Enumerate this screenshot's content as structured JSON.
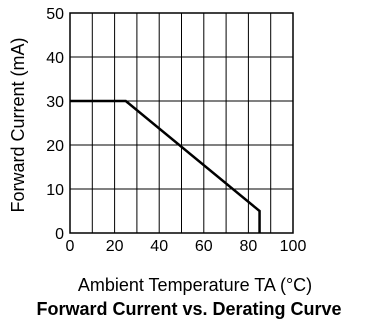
{
  "chart_data": {
    "type": "line",
    "title": "Forward Current vs. Derating Curve",
    "xlabel": "Ambient Temperature  TA (°C)",
    "ylabel": "Forward Current (mA)",
    "xlim": [
      0,
      100
    ],
    "ylim": [
      0,
      50
    ],
    "xticks": [
      0,
      20,
      40,
      60,
      80,
      100
    ],
    "yticks": [
      0,
      10,
      20,
      30,
      40,
      50
    ],
    "grid_x_step": 10,
    "grid_y_step": 10,
    "grid": true,
    "series": [
      {
        "x": [
          0,
          25,
          85,
          85
        ],
        "y": [
          30,
          30,
          5,
          0
        ]
      }
    ]
  }
}
